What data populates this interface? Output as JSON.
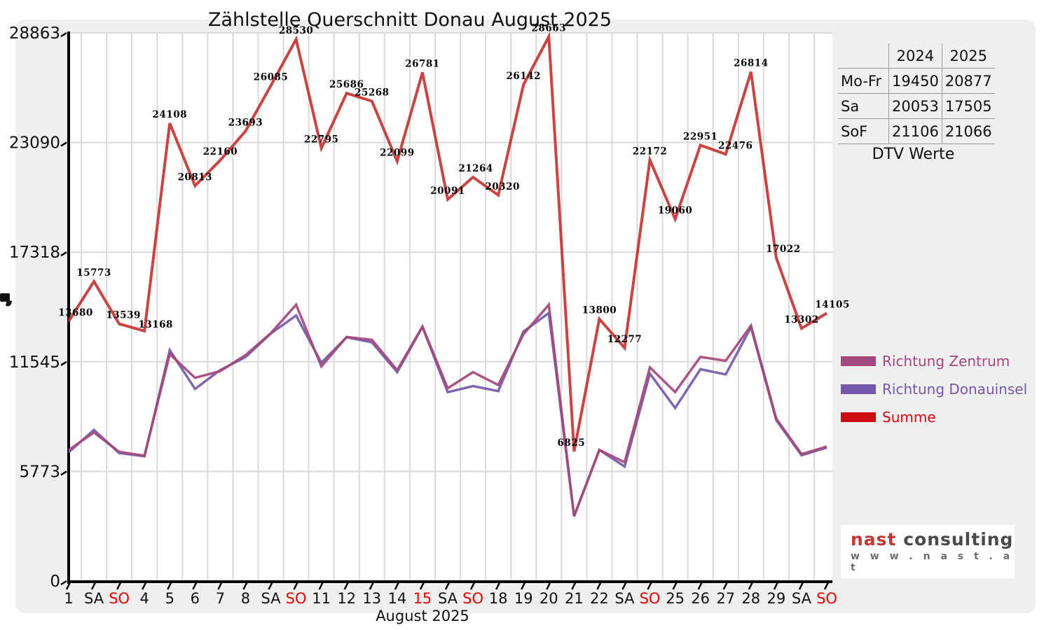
{
  "title": "Zählstelle Querschnitt Donau August 2025",
  "xlabel": "August 2025",
  "table": {
    "header": [
      "",
      "2024",
      "2025"
    ],
    "rows": [
      [
        "Mo-Fr",
        "19450",
        "20877"
      ],
      [
        "Sa",
        "20053",
        "17505"
      ],
      [
        "SoF",
        "21106",
        "21066"
      ]
    ],
    "caption": "DTV Werte"
  },
  "legend": {
    "items": [
      {
        "label": "Richtung Zentrum",
        "color": "#a3487a"
      },
      {
        "label": "Richtung Donauinsel",
        "color": "#7459aa"
      },
      {
        "label": "Summe",
        "color": "#cc0d14"
      }
    ]
  },
  "logo": {
    "name_red": "nast",
    "name_gray": " consulting",
    "url_line": "w w w . n a s t . a t"
  },
  "chart_data": {
    "type": "line",
    "title": "Zählstelle Querschnitt Donau August 2025",
    "xlabel": "August 2025",
    "ylabel": "",
    "ylim": [
      0,
      28863
    ],
    "yticks": [
      0,
      5773,
      11545,
      17318,
      23090,
      28863
    ],
    "grid": true,
    "legend_position": "right",
    "xticklabels": [
      "1",
      "SA",
      "SO",
      "4",
      "5",
      "6",
      "7",
      "8",
      "SA",
      "SO",
      "11",
      "12",
      "13",
      "14",
      "15",
      "SA",
      "SO",
      "18",
      "19",
      "20",
      "21",
      "22",
      "SA",
      "SO",
      "25",
      "26",
      "27",
      "28",
      "29",
      "SA",
      "SO"
    ],
    "red_xtick_indices": [
      2,
      9,
      14,
      16,
      23,
      30
    ],
    "series": [
      {
        "name": "Richtung Zentrum",
        "color": "#a3487a",
        "values_estimated": true,
        "values": [
          6900,
          7820,
          6800,
          6600,
          11950,
          10700,
          11050,
          11900,
          13050,
          14550,
          11300,
          12850,
          12700,
          11100,
          13400,
          10150,
          11000,
          10320,
          13000,
          14550,
          3420,
          6900,
          6250,
          11250,
          9950,
          11800,
          11600,
          13450,
          8550,
          6680,
          7080
        ]
      },
      {
        "name": "Richtung Donauinsel",
        "color": "#7459aa",
        "values_estimated": true,
        "values": [
          6780,
          7953,
          6739,
          6568,
          12158,
          10113,
          11110,
          11793,
          13035,
          13980,
          11495,
          12836,
          12568,
          10999,
          13381,
          9941,
          10264,
          10000,
          13142,
          14113,
          3405,
          6900,
          6027,
          10922,
          9110,
          11151,
          10876,
          13364,
          8472,
          6622,
          7025
        ]
      },
      {
        "name": "Summe",
        "color": "#c53434",
        "labeled": true,
        "values": [
          13680,
          15773,
          13539,
          13168,
          24108,
          20813,
          22160,
          23693,
          26085,
          28530,
          22795,
          25686,
          25268,
          22099,
          26781,
          20091,
          21264,
          20320,
          26142,
          28663,
          6825,
          13800,
          12277,
          22172,
          19060,
          22951,
          22476,
          26814,
          17022,
          13302,
          14105
        ]
      }
    ]
  }
}
